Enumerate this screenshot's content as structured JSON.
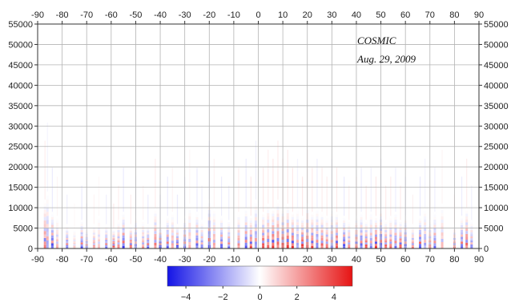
{
  "chart_data": {
    "type": "heatmap",
    "annotation": {
      "line1": "COSMIC",
      "line2": "Aug. 29, 2009"
    },
    "x": {
      "range": [
        -90,
        90
      ],
      "ticks": [
        -90,
        -80,
        -70,
        -60,
        -50,
        -40,
        -30,
        -20,
        -10,
        0,
        10,
        20,
        30,
        40,
        50,
        60,
        70,
        80,
        90
      ]
    },
    "y": {
      "range": [
        0,
        55000
      ],
      "ticks": [
        0,
        5000,
        10000,
        15000,
        20000,
        25000,
        30000,
        35000,
        40000,
        45000,
        50000,
        55000
      ]
    },
    "grid": true,
    "colorbar": {
      "range": [
        -5,
        5
      ],
      "ticks": [
        -4,
        -2,
        0,
        2,
        4
      ],
      "low_color": "#1414e6",
      "mid_color": "#ffffff",
      "high_color": "#e61414"
    },
    "profiles": [
      {
        "x": -87,
        "top": 12000,
        "value": 3.5
      },
      {
        "x": -86,
        "top": 14000,
        "value": -2.5
      },
      {
        "x": -84,
        "top": 9000,
        "value": -4.5
      },
      {
        "x": -82,
        "top": 8000,
        "value": 2
      },
      {
        "x": -78,
        "top": 6000,
        "value": -3.5
      },
      {
        "x": -75,
        "top": 5000,
        "value": 1.5
      },
      {
        "x": -72,
        "top": 7000,
        "value": -4
      },
      {
        "x": -70,
        "top": 5000,
        "value": -3
      },
      {
        "x": -67,
        "top": 6000,
        "value": 2.5
      },
      {
        "x": -65,
        "top": 8000,
        "value": 1.5
      },
      {
        "x": -62,
        "top": 6000,
        "value": -3.5
      },
      {
        "x": -59,
        "top": 5000,
        "value": 4.5
      },
      {
        "x": -57,
        "top": 7000,
        "value": 3
      },
      {
        "x": -55,
        "top": 9000,
        "value": -4.5
      },
      {
        "x": -52,
        "top": 6000,
        "value": 4
      },
      {
        "x": -50,
        "top": 8000,
        "value": -3
      },
      {
        "x": -47,
        "top": 7000,
        "value": 2.5
      },
      {
        "x": -45,
        "top": 6000,
        "value": -4
      },
      {
        "x": -42,
        "top": 10000,
        "value": 3.5
      },
      {
        "x": -40,
        "top": 6000,
        "value": -5
      },
      {
        "x": -37,
        "top": 8000,
        "value": -4
      },
      {
        "x": -35,
        "top": 9000,
        "value": 2.5
      },
      {
        "x": -33,
        "top": 6000,
        "value": -4.5
      },
      {
        "x": -30,
        "top": 8000,
        "value": -3.5
      },
      {
        "x": -28,
        "top": 11000,
        "value": 2
      },
      {
        "x": -25,
        "top": 9000,
        "value": -4
      },
      {
        "x": -23,
        "top": 7000,
        "value": -3
      },
      {
        "x": -20,
        "top": 12000,
        "value": -4.5
      },
      {
        "x": -18,
        "top": 10000,
        "value": 2.5
      },
      {
        "x": -15,
        "top": 8000,
        "value": -4
      },
      {
        "x": -12,
        "top": 7000,
        "value": -3.5
      },
      {
        "x": -8,
        "top": 9000,
        "value": 3
      },
      {
        "x": -5,
        "top": 10000,
        "value": -4
      },
      {
        "x": -3,
        "top": 8000,
        "value": 4.5
      },
      {
        "x": -1,
        "top": 12000,
        "value": -3
      },
      {
        "x": 2,
        "top": 9000,
        "value": 4.5
      },
      {
        "x": 4,
        "top": 11000,
        "value": 3.5
      },
      {
        "x": 6,
        "top": 10000,
        "value": 5
      },
      {
        "x": 8,
        "top": 12000,
        "value": 4
      },
      {
        "x": 10,
        "top": 10000,
        "value": 5
      },
      {
        "x": 12,
        "top": 11000,
        "value": 4.5
      },
      {
        "x": 14,
        "top": 9000,
        "value": 5
      },
      {
        "x": 16,
        "top": 10000,
        "value": -2.5
      },
      {
        "x": 18,
        "top": 8000,
        "value": 5
      },
      {
        "x": 20,
        "top": 11000,
        "value": 4
      },
      {
        "x": 22,
        "top": 9000,
        "value": 4.5
      },
      {
        "x": 24,
        "top": 10000,
        "value": -3.5
      },
      {
        "x": 26,
        "top": 9000,
        "value": 4
      },
      {
        "x": 28,
        "top": 8000,
        "value": 3.5
      },
      {
        "x": 30,
        "top": 10000,
        "value": -3
      },
      {
        "x": 32,
        "top": 9000,
        "value": 4.5
      },
      {
        "x": 35,
        "top": 8000,
        "value": -4.5
      },
      {
        "x": 37,
        "top": 7000,
        "value": 3
      },
      {
        "x": 40,
        "top": 8000,
        "value": 4
      },
      {
        "x": 42,
        "top": 9000,
        "value": -4
      },
      {
        "x": 44,
        "top": 7000,
        "value": 4.5
      },
      {
        "x": 46,
        "top": 9000,
        "value": -3
      },
      {
        "x": 48,
        "top": 8000,
        "value": 5
      },
      {
        "x": 50,
        "top": 10000,
        "value": -4.5
      },
      {
        "x": 52,
        "top": 7000,
        "value": 4
      },
      {
        "x": 54,
        "top": 8000,
        "value": 3.5
      },
      {
        "x": 56,
        "top": 9000,
        "value": -3.5
      },
      {
        "x": 58,
        "top": 7000,
        "value": 4.5
      },
      {
        "x": 60,
        "top": 8000,
        "value": -4
      },
      {
        "x": 63,
        "top": 6000,
        "value": 3
      },
      {
        "x": 66,
        "top": 8000,
        "value": -4.5
      },
      {
        "x": 68,
        "top": 10000,
        "value": -2.5
      },
      {
        "x": 70,
        "top": 7000,
        "value": 3
      },
      {
        "x": 72,
        "top": 9000,
        "value": -3.5
      },
      {
        "x": 75,
        "top": 11000,
        "value": 2
      },
      {
        "x": 80,
        "top": 6000,
        "value": 3
      },
      {
        "x": 83,
        "top": 8000,
        "value": -4
      },
      {
        "x": 85,
        "top": 10000,
        "value": 4
      },
      {
        "x": 87,
        "top": 7000,
        "value": -3
      }
    ]
  }
}
